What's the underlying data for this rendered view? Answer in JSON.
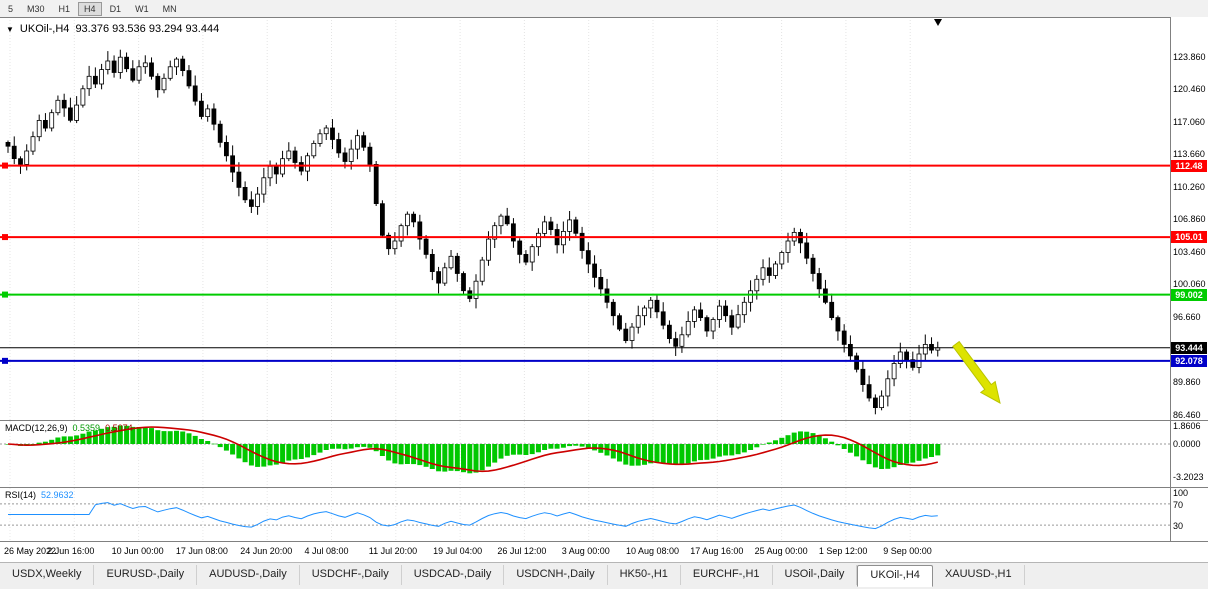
{
  "toolbar": {
    "timeframes": [
      "5",
      "M30",
      "H1",
      "H4",
      "D1",
      "W1",
      "MN"
    ],
    "active": "H4"
  },
  "chart": {
    "collapse_icon": "▼",
    "title": "UKOil-,H4",
    "ohlc": "93.376 93.536 93.294 93.444"
  },
  "chart_data": {
    "type": "candlestick",
    "symbol": "UKOil-",
    "timeframe": "H4",
    "current_bar": {
      "open": 93.376,
      "high": 93.536,
      "low": 93.294,
      "close": 93.444
    },
    "price_axis": {
      "min": 85.9,
      "max": 128.0,
      "ticks": [
        "123.860",
        "120.460",
        "117.060",
        "113.660",
        "110.260",
        "106.860",
        "103.460",
        "100.060",
        "96.660",
        "93.260",
        "89.860",
        "86.460"
      ]
    },
    "closes": [
      114.5,
      113.2,
      112.6,
      114.0,
      115.5,
      117.2,
      116.4,
      118.0,
      119.3,
      118.5,
      117.2,
      118.8,
      120.5,
      121.8,
      121.0,
      122.5,
      123.4,
      122.2,
      123.8,
      122.6,
      121.4,
      122.8,
      123.2,
      121.8,
      120.4,
      121.6,
      122.8,
      123.6,
      122.4,
      120.8,
      119.2,
      117.6,
      118.4,
      116.8,
      114.9,
      113.5,
      111.8,
      110.2,
      108.9,
      108.2,
      109.5,
      111.2,
      112.4,
      111.6,
      113.2,
      114.0,
      112.8,
      111.9,
      113.5,
      114.8,
      115.8,
      116.4,
      115.2,
      113.8,
      112.9,
      114.2,
      115.6,
      114.4,
      112.6,
      108.5,
      105.2,
      103.8,
      104.6,
      106.2,
      107.4,
      106.6,
      104.8,
      103.2,
      101.4,
      100.2,
      101.8,
      103.0,
      101.2,
      99.4,
      98.6,
      100.4,
      102.6,
      104.8,
      106.2,
      107.2,
      106.4,
      104.6,
      103.2,
      102.4,
      104.0,
      105.4,
      106.6,
      105.8,
      104.2,
      105.6,
      106.8,
      105.4,
      103.6,
      102.2,
      100.8,
      99.6,
      98.2,
      96.8,
      95.4,
      94.2,
      95.6,
      96.8,
      97.6,
      98.4,
      97.2,
      95.8,
      94.4,
      93.6,
      94.8,
      96.2,
      97.4,
      96.6,
      95.2,
      96.4,
      97.8,
      96.8,
      95.6,
      96.9,
      98.2,
      99.4,
      100.6,
      101.8,
      101.0,
      102.2,
      103.4,
      104.6,
      105.5,
      104.4,
      102.8,
      101.2,
      99.6,
      98.2,
      96.6,
      95.2,
      93.8,
      92.6,
      91.2,
      89.6,
      88.2,
      87.2,
      88.4,
      90.2,
      91.8,
      93.0,
      92.2,
      91.4,
      92.8,
      93.8,
      93.2,
      93.444
    ],
    "hlines": [
      {
        "price": 112.48,
        "label": "112.48",
        "color": "#ff0000"
      },
      {
        "price": 105.01,
        "label": "105.01",
        "color": "#ff0000"
      },
      {
        "price": 99.002,
        "label": "99.002",
        "color": "#00cc00"
      },
      {
        "price": 93.444,
        "label": "93.444",
        "color": "#000000",
        "current": true
      },
      {
        "price": 92.078,
        "label": "92.078",
        "color": "#0000c8"
      }
    ],
    "time_labels": [
      "26 May 2022",
      "2 Jun 16:00",
      "10 Jun 00:00",
      "17 Jun 08:00",
      "24 Jun 20:00",
      "4 Jul 08:00",
      "11 Jul 20:00",
      "19 Jul 04:00",
      "26 Jul 12:00",
      "3 Aug 00:00",
      "10 Aug 08:00",
      "17 Aug 16:00",
      "25 Aug 00:00",
      "1 Sep 12:00",
      "9 Sep 00:00"
    ],
    "indicators": {
      "macd": {
        "name": "MACD(12,26,9)",
        "main_value": "0.5359",
        "signal_value": "0.5074",
        "params": [
          12,
          26,
          9
        ],
        "axis": [
          "1.8606",
          "0.0000",
          "-3.2023"
        ],
        "hist_color": "#00c800",
        "signal_color": "#cc0000"
      },
      "rsi": {
        "name": "RSI(14)",
        "value": "52.9632",
        "period": 14,
        "levels": [
          70,
          30
        ],
        "axis": [
          "100",
          "70",
          "30"
        ],
        "color": "#1e90ff"
      }
    },
    "arrow_color": "#dde300"
  },
  "tabs": {
    "items": [
      "USDX,Weekly",
      "EURUSD-,Daily",
      "AUDUSD-,Daily",
      "USDCHF-,Daily",
      "USDCAD-,Daily",
      "USDCNH-,Daily",
      "HK50-,H1",
      "EURCHF-,H1",
      "USOil-,Daily",
      "UKOil-,H4",
      "XAUUSD-,H1"
    ],
    "active_index": 9
  }
}
